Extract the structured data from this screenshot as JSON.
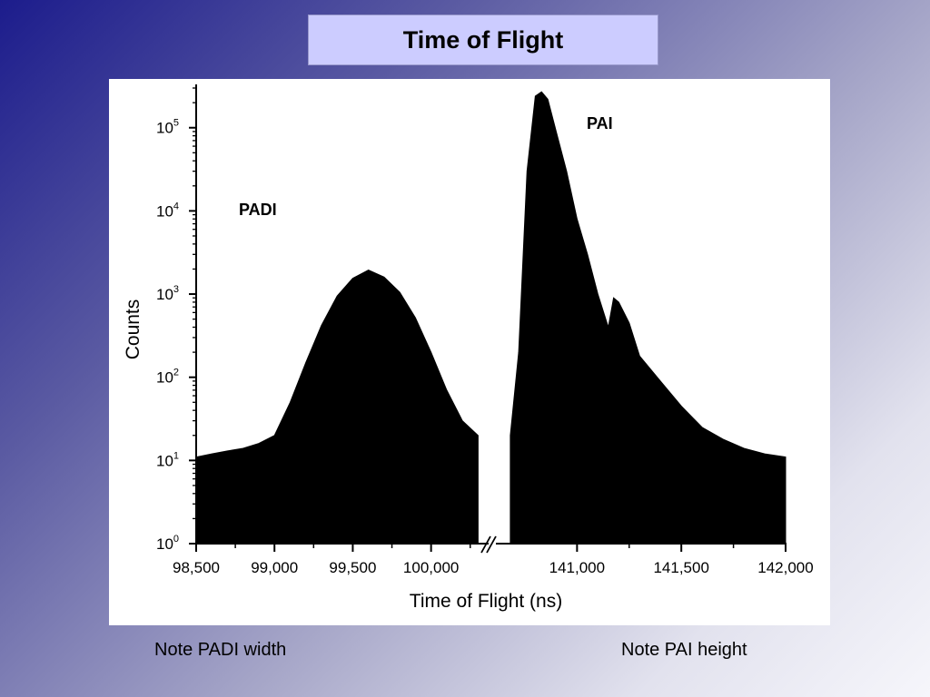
{
  "slide": {
    "title": "Time of Flight",
    "note_left": "Note PADI width",
    "note_right": "Note PAI height"
  },
  "chart_data": {
    "type": "area",
    "xlabel": "Time of Flight (ns)",
    "ylabel": "Counts",
    "y_scale": "log",
    "ylim": [
      1,
      300000
    ],
    "broken_x_axis": true,
    "y_ticks": [
      {
        "base": "10",
        "exp": "0",
        "value": 1
      },
      {
        "base": "10",
        "exp": "1",
        "value": 10
      },
      {
        "base": "10",
        "exp": "2",
        "value": 100
      },
      {
        "base": "10",
        "exp": "3",
        "value": 1000
      },
      {
        "base": "10",
        "exp": "4",
        "value": 10000
      },
      {
        "base": "10",
        "exp": "5",
        "value": 100000
      }
    ],
    "panels": [
      {
        "name": "PADI",
        "label": "PADI",
        "xlim": [
          98500,
          100350
        ],
        "x_ticks": [
          {
            "label": "98,500",
            "value": 98500
          },
          {
            "label": "99,000",
            "value": 99000
          },
          {
            "label": "99,500",
            "value": 99500
          },
          {
            "label": "100,000",
            "value": 100000
          }
        ],
        "x": [
          98500,
          98600,
          98700,
          98800,
          98900,
          99000,
          99100,
          99200,
          99300,
          99400,
          99500,
          99600,
          99700,
          99800,
          99900,
          100000,
          100100,
          100200,
          100300
        ],
        "y": [
          11,
          12,
          13,
          14,
          16,
          20,
          50,
          150,
          420,
          950,
          1550,
          1950,
          1600,
          1050,
          520,
          200,
          70,
          30,
          20
        ]
      },
      {
        "name": "PAI",
        "label": "PAI",
        "xlim": [
          140650,
          142000
        ],
        "x_ticks": [
          {
            "label": "141,000",
            "value": 141000
          },
          {
            "label": "141,500",
            "value": 141500
          },
          {
            "label": "142,000",
            "value": 142000
          }
        ],
        "x": [
          140680,
          140720,
          140760,
          140800,
          140830,
          140860,
          140900,
          140950,
          141000,
          141050,
          141100,
          141150,
          141175,
          141200,
          141250,
          141300,
          141400,
          141500,
          141600,
          141700,
          141800,
          141900,
          142000
        ],
        "y": [
          20,
          200,
          30000,
          240000,
          270000,
          220000,
          90000,
          30000,
          8000,
          3000,
          1000,
          400,
          900,
          800,
          450,
          180,
          90,
          45,
          25,
          18,
          14,
          12,
          11
        ]
      }
    ]
  }
}
